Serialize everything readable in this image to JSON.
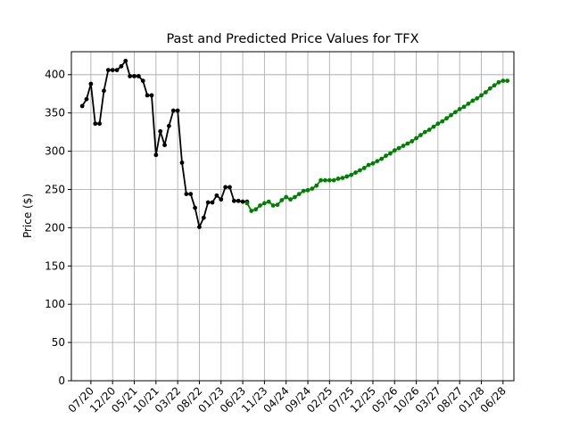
{
  "chart_data": {
    "type": "line",
    "title": "Past and Predicted Price Values for TFX",
    "xlabel": "",
    "ylabel": "Price ($)",
    "ylim": [
      0,
      430
    ],
    "yticks": [
      0,
      50,
      100,
      150,
      200,
      250,
      300,
      350,
      400
    ],
    "x_tick_labels": [
      "07/20",
      "12/20",
      "05/21",
      "10/21",
      "03/22",
      "08/22",
      "01/23",
      "06/23",
      "11/23",
      "04/24",
      "09/24",
      "02/25",
      "07/25",
      "12/25",
      "05/26",
      "10/26",
      "03/27",
      "08/27",
      "01/28",
      "06/28"
    ],
    "x_range_months": [
      -4.5,
      97.5
    ],
    "grid": true,
    "legend": "none",
    "colors": {
      "past": "#000000",
      "predicted": "#008000"
    },
    "series": [
      {
        "role": "past",
        "x_months": [
          -2,
          -1,
          0,
          1,
          2,
          3,
          4,
          5,
          6,
          7,
          8,
          9,
          10,
          11,
          12,
          13,
          14,
          15,
          16,
          17,
          18,
          19,
          20,
          21,
          22,
          23,
          24,
          25,
          26,
          27,
          28,
          29,
          30,
          31,
          32,
          33,
          34,
          35,
          36
        ],
        "values": [
          359,
          368,
          388,
          336,
          336,
          379,
          406,
          406,
          406,
          411,
          418,
          398,
          398,
          398,
          392,
          373,
          373,
          295,
          326,
          308,
          333,
          353,
          353,
          285,
          244,
          244,
          226,
          201,
          213,
          233,
          233,
          242,
          237,
          253,
          253,
          235,
          235,
          234,
          234
        ]
      },
      {
        "role": "predicted",
        "x_months": [
          36,
          37,
          38,
          39,
          40,
          41,
          42,
          43,
          44,
          45,
          46,
          47,
          48,
          49,
          50,
          51,
          52,
          53,
          54,
          55,
          56,
          57,
          58,
          59,
          60,
          61,
          62,
          63,
          64,
          65,
          66,
          67,
          68,
          69,
          70,
          71,
          72,
          73,
          74,
          75,
          76,
          77,
          78,
          79,
          80,
          81,
          82,
          83,
          84,
          85,
          86,
          87,
          88,
          89,
          90,
          91,
          92,
          93,
          94,
          95,
          96
        ],
        "values": [
          232,
          222,
          224,
          229,
          232,
          234,
          229,
          230,
          236,
          240,
          237,
          240,
          244,
          248,
          249,
          251,
          255,
          262,
          262,
          262,
          262,
          264,
          265,
          267,
          269,
          272,
          275,
          278,
          282,
          284,
          287,
          290,
          294,
          297,
          301,
          304,
          307,
          310,
          313,
          317,
          321,
          325,
          328,
          332,
          336,
          339,
          343,
          347,
          351,
          355,
          358,
          362,
          366,
          369,
          373,
          377,
          382,
          386,
          390,
          392,
          392
        ]
      }
    ]
  }
}
